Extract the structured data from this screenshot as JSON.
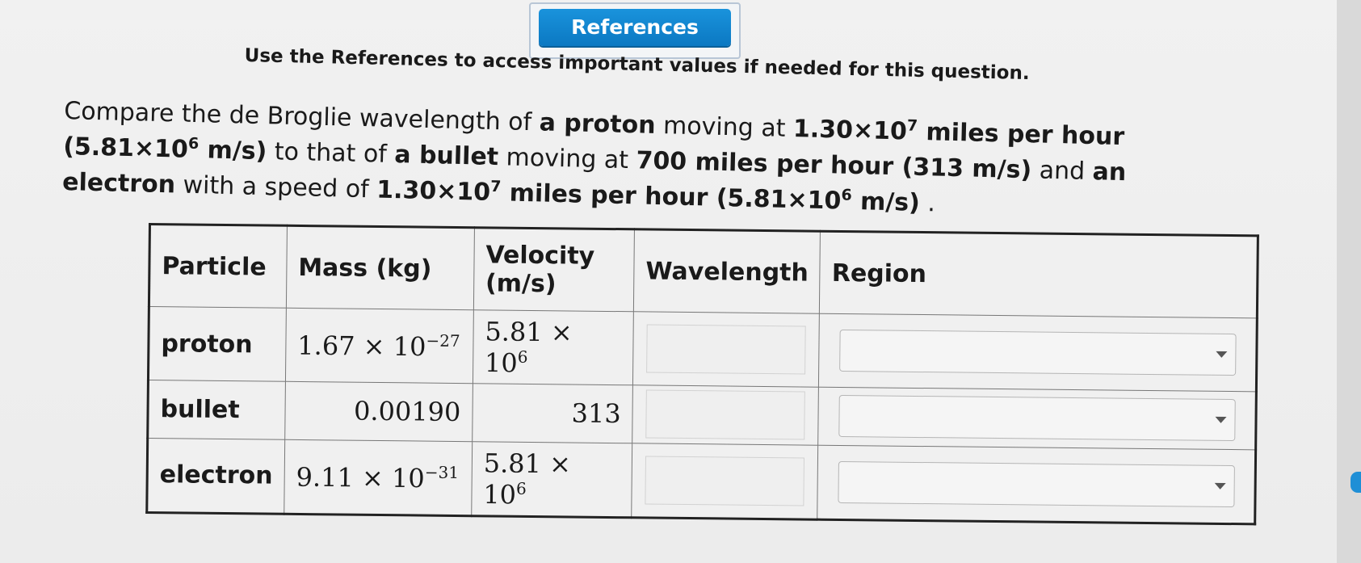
{
  "references_button": "References",
  "note": "Use the References to access important values if needed for this question.",
  "question": {
    "p1": "Compare the de Broglie wavelength of ",
    "b1": "a proton",
    "p2": " moving at ",
    "v1": "1.30×10",
    "v1e": "7",
    "v1u": " miles per hour",
    "v2": "(5.81×10",
    "v2e": "6",
    "v2u": " m/s)",
    "p3": " to that of ",
    "b2": "a bullet",
    "p4": " moving at ",
    "v3": "700 miles per hour (313 m/s)",
    "p5": " and ",
    "b3": "an electron",
    "p6": " with a speed of ",
    "v4": "1.30×10",
    "v4e": "7",
    "v4u": " miles per hour (5.81×10",
    "v4e2": "6",
    "v4u2": " m/s)",
    "p7": " ."
  },
  "table": {
    "headers": [
      "Particle",
      "Mass (kg)",
      "Velocity (m/s)",
      "Wavelength",
      "Region"
    ],
    "rows": [
      {
        "particle": "proton",
        "mass_base": "1.67 × 10",
        "mass_exp": "−27",
        "vel_base": "5.81 × 10",
        "vel_exp": "6",
        "wavelength": "",
        "region": ""
      },
      {
        "particle": "bullet",
        "mass_base": "0.00190",
        "mass_exp": "",
        "vel_base": "313",
        "vel_exp": "",
        "wavelength": "",
        "region": ""
      },
      {
        "particle": "electron",
        "mass_base": "9.11 × 10",
        "mass_exp": "−31",
        "vel_base": "5.81 × 10",
        "vel_exp": "6",
        "wavelength": "",
        "region": ""
      }
    ]
  },
  "icons": {
    "dropdown": "chevron-down-icon"
  },
  "colors": {
    "accent": "#0b78c2",
    "background": "#ececec",
    "border": "#222222"
  }
}
